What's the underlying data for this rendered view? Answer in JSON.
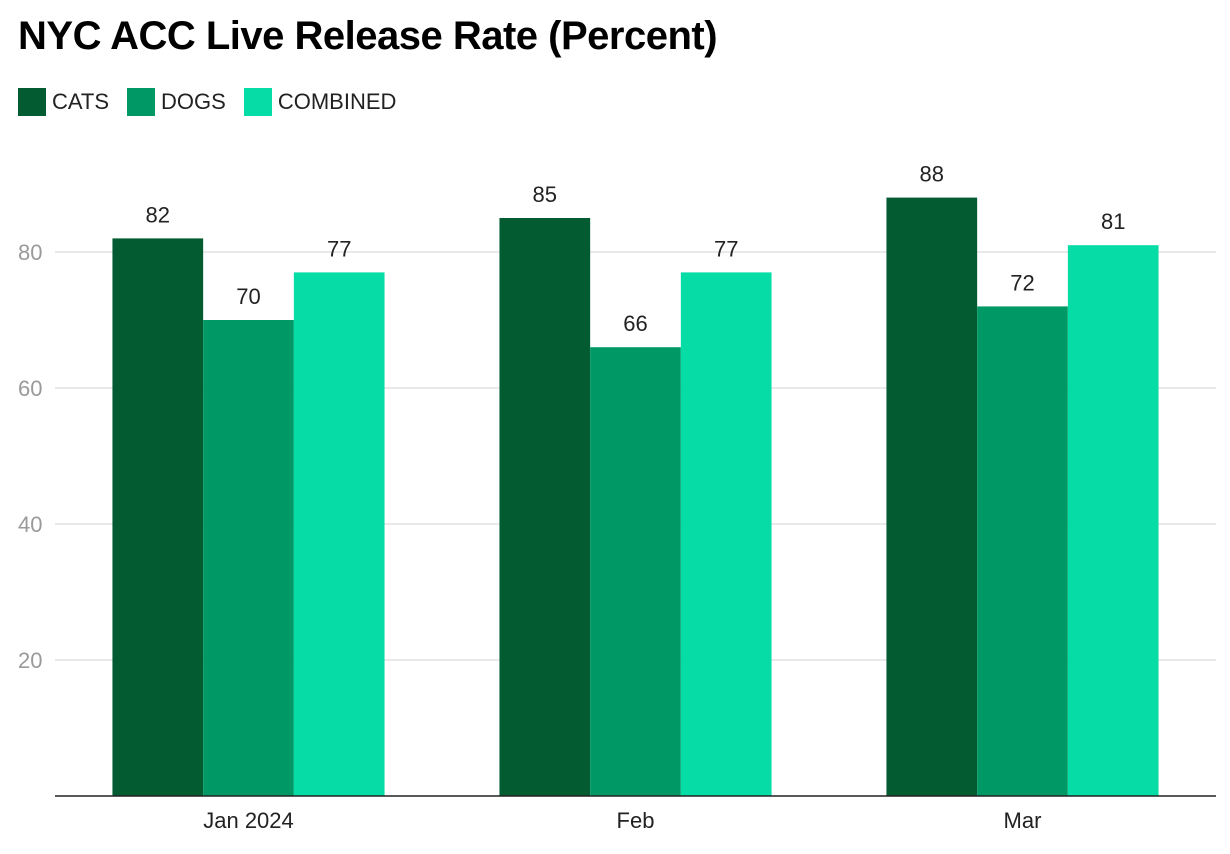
{
  "chart_data": {
    "type": "bar",
    "title": "NYC ACC Live Release Rate (Percent)",
    "categories": [
      "Jan 2024",
      "Feb",
      "Mar"
    ],
    "series": [
      {
        "name": "CATS",
        "color": "#025b31",
        "values": [
          82,
          85,
          88
        ]
      },
      {
        "name": "DOGS",
        "color": "#009966",
        "values": [
          70,
          66,
          72
        ]
      },
      {
        "name": "COMBINED",
        "color": "#06dda6",
        "values": [
          77,
          77,
          81
        ]
      }
    ],
    "yticks": [
      20,
      40,
      60,
      80
    ],
    "ylim": [
      0,
      100
    ],
    "grid": true,
    "legend_position": "top-left",
    "xlabel": "",
    "ylabel": ""
  }
}
